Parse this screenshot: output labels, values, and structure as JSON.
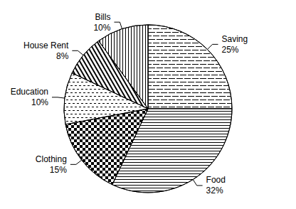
{
  "chart_data": {
    "type": "pie",
    "categories": [
      "Saving",
      "Food",
      "Clothing",
      "Education",
      "House Rent",
      "Bills"
    ],
    "values": [
      25,
      32,
      15,
      10,
      8,
      10
    ],
    "value_labels": [
      "25%",
      "32%",
      "15%",
      "10%",
      "8%",
      "10%"
    ],
    "color": "#ffffff",
    "data_labels": true
  }
}
